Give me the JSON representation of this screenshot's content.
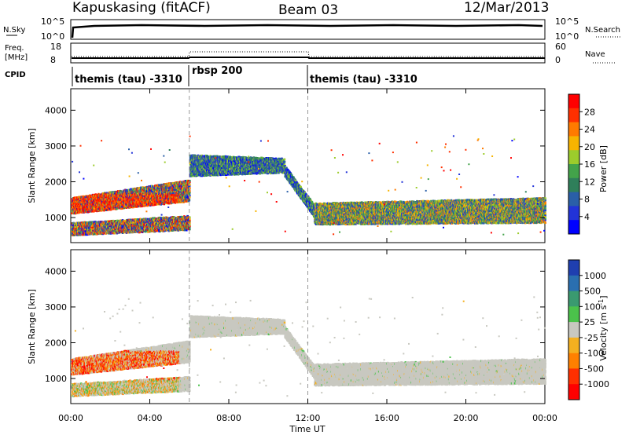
{
  "header": {
    "title": "Kapuskasing (fitACF)",
    "beam": "Beam 03",
    "date": "12/Mar/2013"
  },
  "panels": {
    "nsky": {
      "label": "N.Sky",
      "tick_top": "10^5",
      "tick_bottom": "10^0",
      "right_label": "N.Search",
      "right_tick_top": "10^5",
      "right_tick_bottom": "10^0"
    },
    "freq": {
      "label_line1": "Freq.",
      "label_line2": "[MHz]",
      "tick_top": "18",
      "tick_bottom": "8",
      "right_label": "Nave",
      "right_tick_top": "60",
      "right_tick_bottom": "0"
    },
    "cpid": {
      "label": "CPID",
      "segments": [
        {
          "name": "themis (tau) -3310"
        },
        {
          "name": "rbsp 200"
        },
        {
          "name": "themis (tau) -3310"
        }
      ]
    }
  },
  "colorbars": {
    "power": {
      "label": "Power [dB]",
      "ticks": [
        "28",
        "24",
        "20",
        "16",
        "12",
        "8",
        "4"
      ],
      "colors": [
        "#ff0000",
        "#ff3000",
        "#ff7a00",
        "#f7b400",
        "#9ccc2c",
        "#43a34a",
        "#2f7f5a",
        "#2a5fa8",
        "#2233d8",
        "#0000ff"
      ]
    },
    "velocity": {
      "label": "Velocity [m s",
      "label_sup": "-1",
      "label_end": "]",
      "ticks": [
        "1000",
        "500",
        "100",
        "25",
        "-25",
        "-100",
        "-500",
        "-1000"
      ],
      "colors": [
        "#1f3fb0",
        "#2a6fb0",
        "#3a9a70",
        "#4bc24b",
        "#c8c8c0",
        "#f4b020",
        "#ff8000",
        "#ff3000",
        "#ff0000"
      ]
    }
  },
  "chart_data": [
    {
      "type": "heatmap",
      "name": "power",
      "ylabel": "Slant Range [km]",
      "xlim": [
        0,
        24
      ],
      "ylim": [
        300,
        4600
      ],
      "yticks": [
        1000,
        2000,
        3000,
        4000
      ],
      "xticks": [
        "00:00",
        "04:00",
        "08:00",
        "12:00",
        "16:00",
        "20:00",
        "00:00"
      ],
      "xtick_values": [
        0,
        4,
        8,
        12,
        16,
        20,
        24
      ],
      "dividers": [
        6,
        12
      ],
      "bands": [
        {
          "t": [
            0,
            6
          ],
          "r0": [
            1150,
            1500
          ],
          "r1": [
            1600,
            2100
          ],
          "level": "mixed"
        },
        {
          "t": [
            0,
            6
          ],
          "r0": [
            550,
            700
          ],
          "r1": [
            900,
            1100
          ],
          "level": "mixed"
        },
        {
          "t": [
            6,
            10.8
          ],
          "r0": [
            2200,
            2300
          ],
          "r1": [
            2800,
            2700
          ],
          "level": "medium"
        },
        {
          "t": [
            10.8,
            12.3
          ],
          "r0": [
            2200,
            1050
          ],
          "r1": [
            2500,
            1400
          ],
          "level": "medium"
        },
        {
          "t": [
            12.3,
            24
          ],
          "r0": [
            850,
            900
          ],
          "r1": [
            1450,
            1600
          ],
          "level": "high"
        }
      ]
    },
    {
      "type": "heatmap",
      "name": "velocity",
      "ylabel": "Slant Range [km]",
      "xlabel": "Time UT",
      "xlim": [
        0,
        24
      ],
      "ylim": [
        300,
        4600
      ],
      "yticks": [
        1000,
        2000,
        3000,
        4000
      ],
      "xticks": [
        "00:00",
        "04:00",
        "08:00",
        "12:00",
        "16:00",
        "20:00",
        "00:00"
      ],
      "xtick_values": [
        0,
        4,
        8,
        12,
        16,
        20,
        24
      ],
      "dividers": [
        6,
        12
      ]
    }
  ]
}
